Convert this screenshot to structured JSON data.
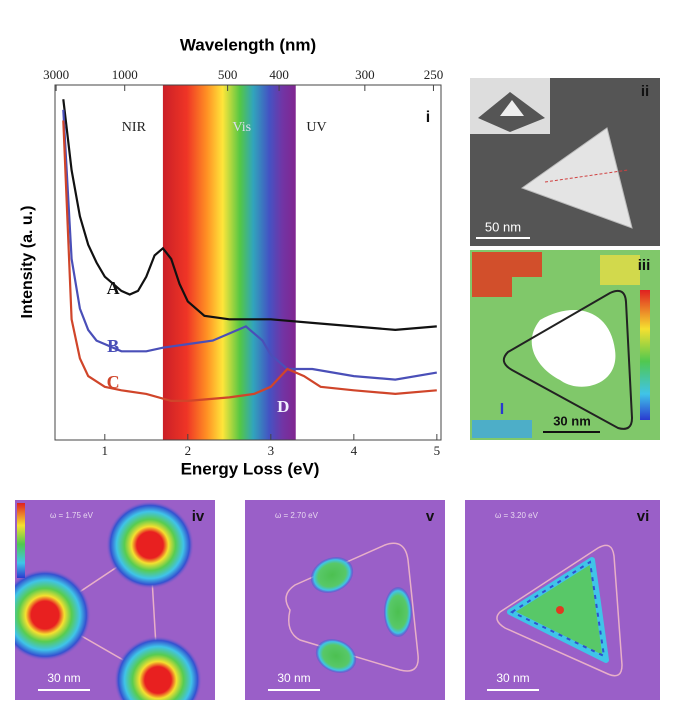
{
  "chart_data": {
    "type": "line",
    "title": "Wavelength (nm)",
    "x_label": "Energy Loss (eV)",
    "y_label": "Intensity (a. u.)",
    "panel_label": "i",
    "xlim": [
      0.4,
      5.05
    ],
    "xticks": [
      1,
      2,
      3,
      4,
      5
    ],
    "x2lim": [
      3100,
      245.5
    ],
    "x2scale": "reciprocal",
    "x2ticks": [
      3000,
      1000,
      500,
      400,
      300,
      250
    ],
    "ylim": [
      0,
      100
    ],
    "spectrum_range": [
      1.7,
      3.3
    ],
    "band_labels": [
      "NIR",
      "Vis",
      "UV"
    ],
    "annotation": "D",
    "series": [
      {
        "name": "A",
        "color": "#111111",
        "x": [
          0.5,
          0.6,
          0.7,
          0.8,
          0.9,
          1.0,
          1.1,
          1.2,
          1.3,
          1.4,
          1.5,
          1.6,
          1.7,
          1.8,
          1.9,
          2.0,
          2.2,
          2.5,
          3.0,
          3.5,
          4.0,
          4.5,
          5.0
        ],
        "values": [
          96,
          76,
          63,
          55,
          50,
          46,
          44,
          42,
          41,
          42,
          46,
          52,
          54,
          51,
          44,
          39,
          35,
          34,
          34,
          33,
          32,
          31,
          32
        ]
      },
      {
        "name": "B",
        "color": "#4a4fb8",
        "x": [
          0.5,
          0.6,
          0.7,
          0.8,
          0.9,
          1.0,
          1.2,
          1.5,
          1.7,
          2.0,
          2.3,
          2.5,
          2.7,
          2.9,
          3.0,
          3.2,
          3.5,
          4.0,
          4.5,
          5.0
        ],
        "values": [
          93,
          51,
          37,
          31,
          28,
          27,
          25,
          25,
          26,
          27,
          28,
          30,
          32,
          28,
          24,
          20,
          20,
          18,
          17,
          19
        ]
      },
      {
        "name": "C",
        "color": "#d0452a",
        "x": [
          0.5,
          0.6,
          0.7,
          0.8,
          1.0,
          1.2,
          1.5,
          1.8,
          2.0,
          2.5,
          2.8,
          3.0,
          3.2,
          3.4,
          3.6,
          4.0,
          4.5,
          5.0
        ],
        "values": [
          90,
          34,
          23,
          18,
          15,
          14,
          13,
          11,
          11,
          12,
          13,
          15,
          20,
          18,
          15,
          14,
          13,
          14
        ]
      }
    ]
  },
  "panels": [
    {
      "label": "ii",
      "scale_bar": "50 nm"
    },
    {
      "label": "iii",
      "scale_bar": "30 nm",
      "marker": "I"
    },
    {
      "label": "iv",
      "energy": "ω = 1.75 eV",
      "scale_bar": "30 nm"
    },
    {
      "label": "v",
      "energy": "ω = 2.70 eV",
      "scale_bar": "30 nm"
    },
    {
      "label": "vi",
      "energy": "ω = 3.20 eV",
      "scale_bar": "30 nm"
    }
  ]
}
